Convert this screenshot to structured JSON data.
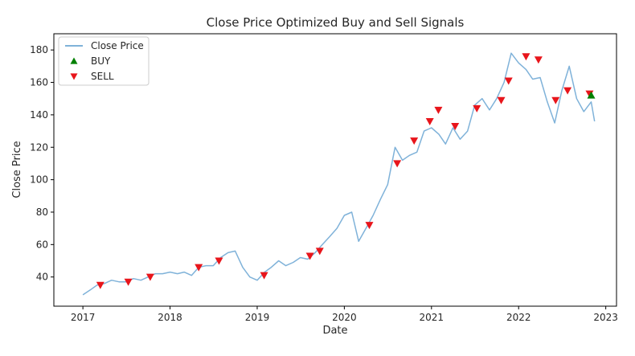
{
  "chart_data": {
    "type": "line",
    "title": "Close Price Optimized Buy and Sell Signals",
    "xlabel": "Date",
    "ylabel": "Close Price",
    "xlim": [
      "2016-09-01",
      "2023-02-15"
    ],
    "ylim": [
      22,
      190
    ],
    "x_ticks": [
      "2017",
      "2018",
      "2019",
      "2020",
      "2021",
      "2022",
      "2023"
    ],
    "y_ticks": [
      40,
      60,
      80,
      100,
      120,
      140,
      160,
      180
    ],
    "grid": false,
    "legend_position": "top-left",
    "colors": {
      "line": "#7fb2d9",
      "buy": "#008000",
      "sell": "#e8151b"
    },
    "legend": [
      {
        "label": "Close Price",
        "kind": "line"
      },
      {
        "label": "BUY",
        "kind": "buy"
      },
      {
        "label": "SELL",
        "kind": "sell"
      }
    ],
    "series": [
      {
        "name": "Close Price",
        "points": [
          [
            "2017-01-01",
            29
          ],
          [
            "2017-02-01",
            32
          ],
          [
            "2017-03-01",
            35
          ],
          [
            "2017-04-01",
            36
          ],
          [
            "2017-05-01",
            38
          ],
          [
            "2017-06-01",
            37
          ],
          [
            "2017-07-01",
            37
          ],
          [
            "2017-08-01",
            39
          ],
          [
            "2017-09-01",
            38
          ],
          [
            "2017-10-01",
            40
          ],
          [
            "2017-11-01",
            42
          ],
          [
            "2017-12-01",
            42
          ],
          [
            "2018-01-01",
            43
          ],
          [
            "2018-02-01",
            42
          ],
          [
            "2018-03-01",
            43
          ],
          [
            "2018-04-01",
            41
          ],
          [
            "2018-05-01",
            46
          ],
          [
            "2018-06-01",
            47
          ],
          [
            "2018-07-01",
            47
          ],
          [
            "2018-08-01",
            52
          ],
          [
            "2018-09-01",
            55
          ],
          [
            "2018-10-01",
            56
          ],
          [
            "2018-11-01",
            46
          ],
          [
            "2018-12-01",
            40
          ],
          [
            "2019-01-01",
            38
          ],
          [
            "2019-02-01",
            43
          ],
          [
            "2019-03-01",
            46
          ],
          [
            "2019-04-01",
            50
          ],
          [
            "2019-05-01",
            47
          ],
          [
            "2019-06-01",
            49
          ],
          [
            "2019-07-01",
            52
          ],
          [
            "2019-08-01",
            51
          ],
          [
            "2019-09-01",
            55
          ],
          [
            "2019-10-01",
            60
          ],
          [
            "2019-11-01",
            65
          ],
          [
            "2019-12-01",
            70
          ],
          [
            "2020-01-01",
            78
          ],
          [
            "2020-02-01",
            80
          ],
          [
            "2020-03-01",
            62
          ],
          [
            "2020-04-01",
            70
          ],
          [
            "2020-05-01",
            78
          ],
          [
            "2020-06-01",
            88
          ],
          [
            "2020-07-01",
            97
          ],
          [
            "2020-08-01",
            120
          ],
          [
            "2020-09-01",
            112
          ],
          [
            "2020-10-01",
            115
          ],
          [
            "2020-11-01",
            117
          ],
          [
            "2020-12-01",
            130
          ],
          [
            "2021-01-01",
            132
          ],
          [
            "2021-02-01",
            128
          ],
          [
            "2021-03-01",
            122
          ],
          [
            "2021-04-01",
            132
          ],
          [
            "2021-05-01",
            125
          ],
          [
            "2021-06-01",
            130
          ],
          [
            "2021-07-01",
            146
          ],
          [
            "2021-08-01",
            150
          ],
          [
            "2021-09-01",
            143
          ],
          [
            "2021-10-01",
            150
          ],
          [
            "2021-11-01",
            160
          ],
          [
            "2021-12-01",
            178
          ],
          [
            "2022-01-01",
            172
          ],
          [
            "2022-02-01",
            168
          ],
          [
            "2022-03-01",
            162
          ],
          [
            "2022-04-01",
            163
          ],
          [
            "2022-05-01",
            148
          ],
          [
            "2022-06-01",
            135
          ],
          [
            "2022-07-01",
            155
          ],
          [
            "2022-08-01",
            170
          ],
          [
            "2022-09-01",
            150
          ],
          [
            "2022-10-01",
            142
          ],
          [
            "2022-11-01",
            148
          ],
          [
            "2022-11-15",
            136
          ]
        ]
      },
      {
        "name": "BUY",
        "points": [
          [
            "2022-11-01",
            152
          ]
        ]
      },
      {
        "name": "SELL",
        "points": [
          [
            "2017-03-15",
            35
          ],
          [
            "2017-07-10",
            37
          ],
          [
            "2017-10-10",
            40
          ],
          [
            "2018-05-01",
            46
          ],
          [
            "2018-07-25",
            50
          ],
          [
            "2019-01-30",
            41
          ],
          [
            "2019-08-10",
            53
          ],
          [
            "2019-09-20",
            56
          ],
          [
            "2020-04-15",
            72
          ],
          [
            "2020-08-10",
            110
          ],
          [
            "2020-10-20",
            124
          ],
          [
            "2020-12-25",
            136
          ],
          [
            "2021-01-30",
            143
          ],
          [
            "2021-04-10",
            133
          ],
          [
            "2021-07-10",
            144
          ],
          [
            "2021-10-20",
            149
          ],
          [
            "2021-11-20",
            161
          ],
          [
            "2022-02-01",
            176
          ],
          [
            "2022-03-25",
            174
          ],
          [
            "2022-06-05",
            149
          ],
          [
            "2022-07-25",
            155
          ],
          [
            "2022-10-25",
            153
          ]
        ]
      }
    ]
  }
}
